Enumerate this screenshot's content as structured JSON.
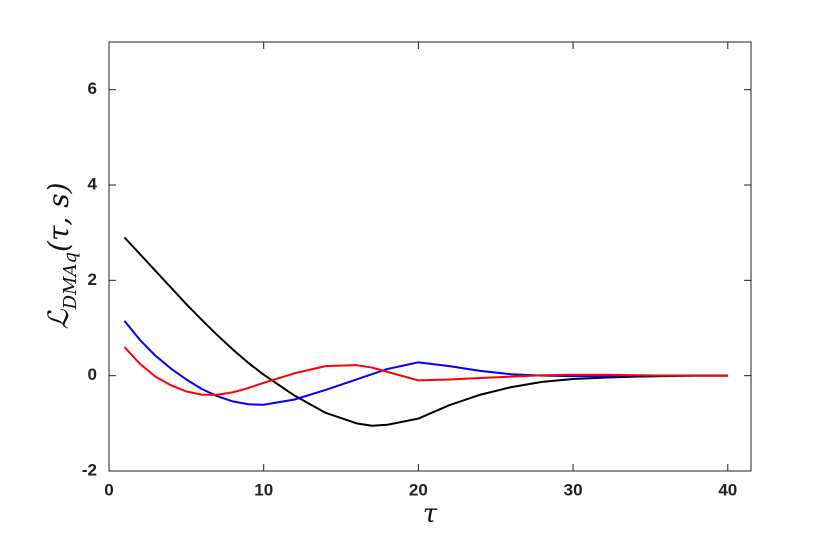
{
  "chart_data": {
    "type": "line",
    "xlabel": "τ",
    "ylabel": {
      "main": "ℒ",
      "sub": "DMAq",
      "args": "(τ, s)"
    },
    "x": [
      1,
      2,
      3,
      4,
      5,
      6,
      7,
      8,
      9,
      10,
      12,
      14,
      16,
      17,
      18,
      20,
      22,
      24,
      26,
      28,
      30,
      32,
      34,
      36,
      38,
      40
    ],
    "series": [
      {
        "color": "#000000",
        "values": [
          2.9,
          2.55,
          2.2,
          1.85,
          1.5,
          1.17,
          0.85,
          0.55,
          0.27,
          0.02,
          -0.42,
          -0.78,
          -1.0,
          -1.05,
          -1.03,
          -0.9,
          -0.62,
          -0.4,
          -0.24,
          -0.13,
          -0.07,
          -0.04,
          -0.02,
          -0.01,
          0,
          0
        ]
      },
      {
        "color": "#0000ff",
        "values": [
          1.15,
          0.75,
          0.42,
          0.15,
          -0.08,
          -0.28,
          -0.43,
          -0.54,
          -0.6,
          -0.61,
          -0.5,
          -0.3,
          -0.08,
          0.03,
          0.14,
          0.28,
          0.2,
          0.1,
          0.03,
          0,
          -0.01,
          -0.01,
          0,
          0,
          0,
          0
        ]
      },
      {
        "color": "#ff0000",
        "values": [
          0.6,
          0.25,
          -0.02,
          -0.2,
          -0.33,
          -0.4,
          -0.4,
          -0.35,
          -0.26,
          -0.15,
          0.05,
          0.2,
          0.22,
          0.17,
          0.08,
          -0.1,
          -0.08,
          -0.05,
          -0.02,
          0.01,
          0.02,
          0.02,
          0.01,
          0,
          0,
          0
        ]
      }
    ],
    "xlim": [
      0,
      41.5
    ],
    "xticks": [
      0,
      10,
      20,
      30,
      40
    ],
    "ylim": [
      -2,
      7
    ],
    "yticks": [
      -2,
      0,
      2,
      4,
      6
    ]
  }
}
